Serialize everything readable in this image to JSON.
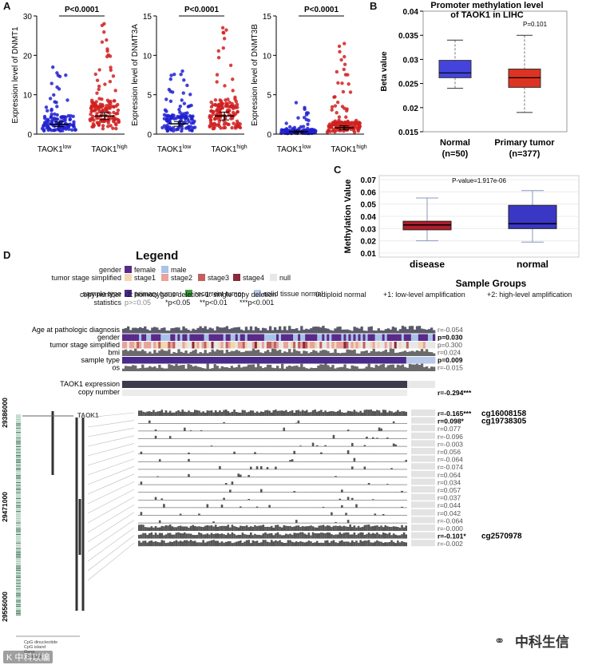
{
  "panels": {
    "A": "A",
    "B": "B",
    "C": "C",
    "D": "D"
  },
  "chart_data": [
    {
      "type": "scatter",
      "id": "A1",
      "ylabel": "Expression level of DNMT1",
      "yticks": [
        0,
        10,
        20,
        30
      ],
      "ylim": [
        0,
        30
      ],
      "groups": [
        {
          "label": "TAOK1",
          "sup": "low",
          "mean": 2.5,
          "sd": 0.6,
          "color": "#2020d0"
        },
        {
          "label": "TAOK1",
          "sup": "high",
          "mean": 4.6,
          "sd": 0.9,
          "color": "#d02020"
        }
      ],
      "pvalue": "P<0.0001"
    },
    {
      "type": "scatter",
      "id": "A2",
      "ylabel": "Expression level of DNMT3A",
      "yticks": [
        0,
        5,
        10,
        15
      ],
      "ylim": [
        0,
        15
      ],
      "groups": [
        {
          "label": "TAOK1",
          "sup": "low",
          "mean": 1.3,
          "sd": 0.3,
          "color": "#2020d0"
        },
        {
          "label": "TAOK1",
          "sup": "high",
          "mean": 2.3,
          "sd": 0.5,
          "color": "#d02020"
        }
      ],
      "pvalue": "P<0.0001"
    },
    {
      "type": "scatter",
      "id": "A3",
      "ylabel": "Expression level of DNMT3B",
      "yticks": [
        0,
        5,
        10,
        15
      ],
      "ylim": [
        0,
        15
      ],
      "groups": [
        {
          "label": "TAOK1",
          "sup": "low",
          "mean": 0.3,
          "sd": 0.1,
          "color": "#2020d0"
        },
        {
          "label": "TAOK1",
          "sup": "high",
          "mean": 0.8,
          "sd": 0.25,
          "color": "#d02020"
        }
      ],
      "pvalue": "P<0.0001"
    },
    {
      "type": "box",
      "id": "B",
      "title": "Promoter methylation level",
      "title2": "of TAOK1 in LIHC",
      "ylabel": "Beta value",
      "yticks": [
        "0.015",
        "0.02",
        "0.025",
        "0.03",
        "0.035",
        "0.04"
      ],
      "ylim": [
        0.015,
        0.04
      ],
      "pvalue": "P=0.101",
      "boxes": [
        {
          "label": "Normal",
          "n": "(n=50)",
          "min": 0.024,
          "q1": 0.0262,
          "median": 0.0272,
          "q3": 0.0298,
          "max": 0.034,
          "color": "#4444dd"
        },
        {
          "label": "Primary tumor",
          "n": "(n=377)",
          "min": 0.019,
          "q1": 0.0242,
          "median": 0.0262,
          "q3": 0.028,
          "max": 0.035,
          "color": "#dd3322"
        }
      ]
    },
    {
      "type": "box",
      "id": "C",
      "ylabel": "Methylation Value",
      "xlabel": "Sample Groups",
      "yticks": [
        "0.01",
        "0.02",
        "0.03",
        "0.04",
        "0.05",
        "0.06",
        "0.07"
      ],
      "ylim": [
        0.01,
        0.07
      ],
      "pvalue": "P-value=1.917e-06",
      "boxes": [
        {
          "label": "disease",
          "min": 0.02,
          "q1": 0.029,
          "median": 0.033,
          "q3": 0.036,
          "max": 0.055,
          "color": "#b01c2a"
        },
        {
          "label": "normal",
          "min": 0.019,
          "q1": 0.03,
          "median": 0.034,
          "q3": 0.049,
          "max": 0.061,
          "color": "#3a37c6"
        }
      ]
    },
    {
      "type": "heatmap",
      "id": "D",
      "legend_title": "Legend",
      "legend_rows": [
        {
          "key": "gender",
          "items": [
            {
              "label": "female",
              "color": "#5a2a8a"
            },
            {
              "label": "male",
              "color": "#a9c3e8"
            }
          ]
        },
        {
          "key": "tumor stage simplified",
          "items": [
            {
              "label": "stage1",
              "color": "#f2d7b0"
            },
            {
              "label": "stage2",
              "color": "#e8a39a"
            },
            {
              "label": "stage3",
              "color": "#c06060"
            },
            {
              "label": "stage4",
              "color": "#8a2a3a"
            },
            {
              "label": "null",
              "color": "#e8e8e8"
            }
          ]
        },
        {
          "key": "sample type",
          "items": [
            {
              "label": "primary tumor",
              "color": "#4a2a8a"
            },
            {
              "label": "recurrent tumor",
              "color": "#3a9a3a"
            },
            {
              "label": "solid tissue normal",
              "color": "#b8c8e8"
            }
          ]
        }
      ],
      "copy_number_key": "copy number",
      "copy_number_items": [
        "-2: homozygous deletion",
        "-1: single copy deletion",
        "0:diploid normal",
        "+1: low-level amplification",
        "+2: high-level amplification"
      ],
      "stats_key": "statistics",
      "stats_items": [
        "p>=0.05",
        "*p<0.05",
        "**p<0.01",
        "***p<0.001"
      ],
      "clinical_rows": [
        {
          "label": "Age at pathologic diagnosis",
          "r": "r=-0.054",
          "bold": false
        },
        {
          "label": "gender",
          "r": "p=0.030",
          "bold": true
        },
        {
          "label": "tumor stage simplified",
          "r": "p=0.300",
          "bold": false
        },
        {
          "label": "bmi",
          "r": "r=0.024",
          "bold": false
        },
        {
          "label": "sample type",
          "r": "p=0.009",
          "bold": true
        },
        {
          "label": "os",
          "r": "r=-0.015",
          "bold": false
        }
      ],
      "expression_label": "TAOK1 expression",
      "copy_label": "copy number",
      "copy_r": "r=-0.294***",
      "gene": "TAOK1",
      "genome_ticks": [
        "29386000",
        "29471000",
        "29556000"
      ],
      "track_legend": [
        "CpG dinucleotide",
        "CpG island",
        "Gene",
        "transcript"
      ],
      "probes": [
        {
          "r": "r=-0.165***",
          "bold": true,
          "name": "cg16008158"
        },
        {
          "r": "r=0.098*",
          "bold": true,
          "name": "cg19738305"
        },
        {
          "r": "r=0.077",
          "bold": false,
          "name": ""
        },
        {
          "r": "r=-0.096",
          "bold": false,
          "name": ""
        },
        {
          "r": "r=-0.003",
          "bold": false,
          "name": ""
        },
        {
          "r": "r=0.056",
          "bold": false,
          "name": ""
        },
        {
          "r": "r=-0.064",
          "bold": false,
          "name": ""
        },
        {
          "r": "r=-0.074",
          "bold": false,
          "name": ""
        },
        {
          "r": "r=0.064",
          "bold": false,
          "name": ""
        },
        {
          "r": "r=0.034",
          "bold": false,
          "name": ""
        },
        {
          "r": "r=0.057",
          "bold": false,
          "name": ""
        },
        {
          "r": "r=0.037",
          "bold": false,
          "name": ""
        },
        {
          "r": "r=0.044",
          "bold": false,
          "name": ""
        },
        {
          "r": "r=0.042",
          "bold": false,
          "name": ""
        },
        {
          "r": "r=-0.064",
          "bold": false,
          "name": ""
        },
        {
          "r": "r=-0.000",
          "bold": false,
          "name": ""
        },
        {
          "r": "r=-0.101*",
          "bold": true,
          "name": "cg2570978"
        },
        {
          "r": "r=-0.002",
          "bold": false,
          "name": ""
        }
      ]
    }
  ],
  "watermark": "中科生信",
  "watermark_left": "K 中科以编"
}
